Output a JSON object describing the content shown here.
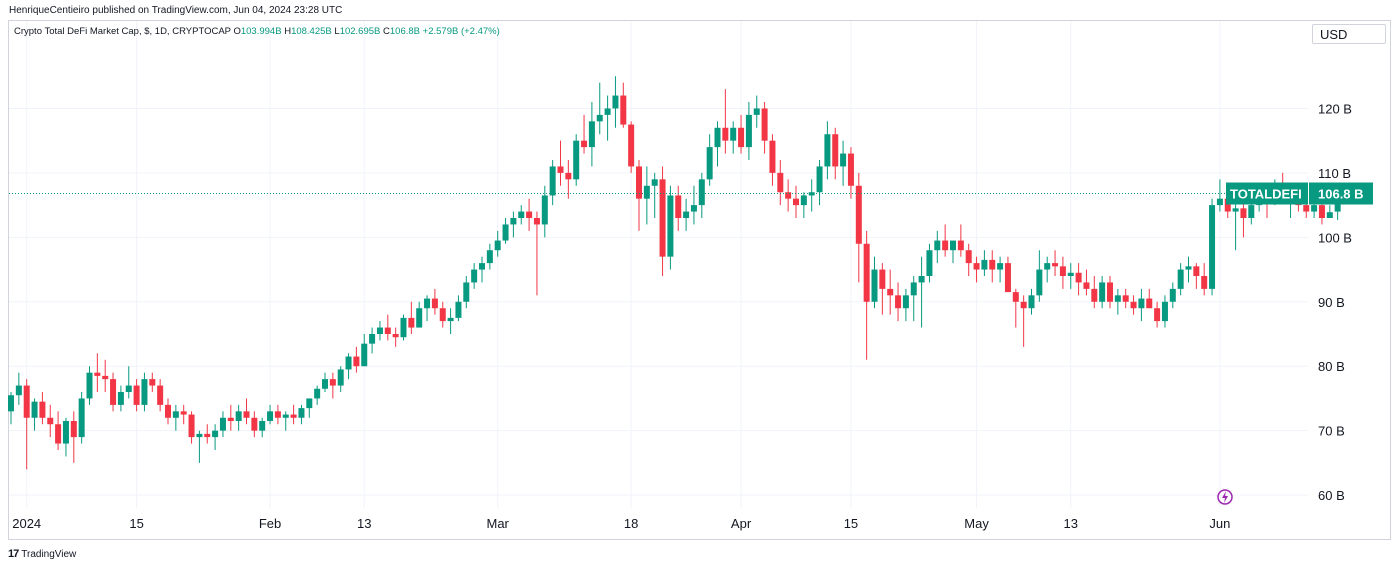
{
  "header": {
    "published_line": "HenriqueCentieiro published on TradingView.com, Jun 04, 2024 23:28 UTC"
  },
  "legend": {
    "symbol_line": "Crypto Total DeFi Market Cap, $, 1D, CRYPTOCAP",
    "open_label": "O",
    "open_value": "103.994B",
    "high_label": "H",
    "high_value": "108.425B",
    "low_label": "L",
    "low_value": "102.695B",
    "close_label": "C",
    "close_value": "106.8B",
    "change": "+2.579B (+2.47%)"
  },
  "currency_button": {
    "label": "USD"
  },
  "price_tag": {
    "symbol": "TOTALDEFI",
    "value": "106.8 B"
  },
  "footer": {
    "logo_mark": "17",
    "brand": "TradingView"
  },
  "colors": {
    "up": "#089981",
    "down": "#f23645",
    "grid": "#f0f3fa",
    "accent": "#9c27b0"
  },
  "icons": {
    "lightning": "lightning-icon",
    "logo": "tradingview-logo-icon"
  },
  "chart_data": {
    "type": "candlestick",
    "title": "",
    "xlabel": "",
    "ylabel": "",
    "ylim": [
      58,
      130
    ],
    "y_ticks": [
      60,
      70,
      80,
      90,
      100,
      110,
      120
    ],
    "y_tick_labels": [
      "60 B",
      "70 B",
      "80 B",
      "90 B",
      "100 B",
      "110 B",
      "120 B"
    ],
    "x_tick_labels": [
      "2024",
      "15",
      "Feb",
      "13",
      "Mar",
      "18",
      "Apr",
      "15",
      "May",
      "13",
      "Jun"
    ],
    "x_tick_dates": [
      "2024-01-01",
      "2024-01-15",
      "2024-02-01",
      "2024-02-13",
      "2024-03-01",
      "2024-03-18",
      "2024-04-01",
      "2024-04-15",
      "2024-05-01",
      "2024-05-13",
      "2024-06-01"
    ],
    "last_value": 106.8,
    "grid": true,
    "candle_start_date": "2023-12-30",
    "candles": [
      [
        73,
        76,
        71,
        75.5
      ],
      [
        75.5,
        79,
        74,
        77
      ],
      [
        77,
        78,
        64,
        72
      ],
      [
        72,
        75,
        70,
        74.5
      ],
      [
        74.5,
        76,
        71,
        72
      ],
      [
        72,
        74,
        69,
        71
      ],
      [
        71,
        73,
        67,
        68
      ],
      [
        68,
        72,
        66,
        71.5
      ],
      [
        71.5,
        73,
        65,
        69
      ],
      [
        69,
        76,
        68,
        75
      ],
      [
        75,
        80,
        74,
        79
      ],
      [
        79,
        82,
        76,
        78.5
      ],
      [
        78.5,
        81,
        76,
        78
      ],
      [
        78,
        79,
        73,
        74
      ],
      [
        74,
        77,
        73,
        76
      ],
      [
        76,
        80,
        75,
        77
      ],
      [
        77,
        78,
        73,
        74
      ],
      [
        74,
        79,
        73,
        78
      ],
      [
        78,
        79,
        76,
        77
      ],
      [
        77,
        78,
        73,
        74
      ],
      [
        74,
        75,
        71,
        72
      ],
      [
        72,
        74,
        70,
        73
      ],
      [
        73,
        74,
        71,
        72.5
      ],
      [
        72.5,
        73,
        68,
        69
      ],
      [
        69,
        70,
        65,
        69.5
      ],
      [
        69.5,
        71,
        68,
        69
      ],
      [
        69,
        71,
        67,
        70
      ],
      [
        70,
        73,
        69,
        72
      ],
      [
        72,
        74,
        70,
        71.5
      ],
      [
        71.5,
        74,
        70,
        73
      ],
      [
        73,
        75,
        71,
        72
      ],
      [
        72,
        73,
        69,
        70
      ],
      [
        70,
        72,
        69,
        71.5
      ],
      [
        71.5,
        74,
        71,
        73
      ],
      [
        73,
        74,
        71,
        72
      ],
      [
        72,
        73,
        70,
        72.5
      ],
      [
        72.5,
        74,
        71,
        72
      ],
      [
        72,
        74,
        71,
        73.5
      ],
      [
        73.5,
        75,
        72,
        75
      ],
      [
        75,
        77,
        74,
        76.5
      ],
      [
        76.5,
        79,
        76,
        78
      ],
      [
        78,
        79,
        75,
        77
      ],
      [
        77,
        80,
        76,
        79.5
      ],
      [
        79.5,
        82,
        78,
        81.5
      ],
      [
        81.5,
        83,
        79,
        80
      ],
      [
        80,
        85,
        80,
        83.5
      ],
      [
        83.5,
        86,
        82,
        85
      ],
      [
        85,
        87,
        84,
        86
      ],
      [
        86,
        88,
        84,
        85
      ],
      [
        85,
        86,
        83,
        84.5
      ],
      [
        84.5,
        88,
        84,
        87.5
      ],
      [
        87.5,
        90,
        85,
        86
      ],
      [
        86,
        90,
        86,
        89
      ],
      [
        89,
        91,
        87,
        90.5
      ],
      [
        90.5,
        92,
        88,
        89
      ],
      [
        89,
        90,
        86,
        87
      ],
      [
        87,
        89,
        85,
        87.5
      ],
      [
        87.5,
        91,
        87,
        90
      ],
      [
        90,
        94,
        89,
        93
      ],
      [
        93,
        96,
        92,
        95
      ],
      [
        95,
        97,
        93,
        96
      ],
      [
        96,
        99,
        95,
        98
      ],
      [
        98,
        101,
        97,
        99.5
      ],
      [
        99.5,
        103,
        99,
        102
      ],
      [
        102,
        104,
        100,
        103
      ],
      [
        103,
        105,
        102,
        104
      ],
      [
        104,
        106,
        101,
        103
      ],
      [
        103,
        104,
        91,
        102
      ],
      [
        102,
        108,
        100,
        106.5
      ],
      [
        106.5,
        112,
        105,
        111
      ],
      [
        111,
        115,
        108,
        110
      ],
      [
        110,
        112,
        106,
        109
      ],
      [
        109,
        116,
        108,
        115
      ],
      [
        115,
        119,
        113,
        114
      ],
      [
        114,
        121,
        111,
        118
      ],
      [
        118,
        124,
        116,
        119
      ],
      [
        119,
        122,
        115,
        120
      ],
      [
        120,
        125,
        117,
        122
      ],
      [
        122,
        124,
        117,
        117.5
      ],
      [
        117.5,
        118,
        110,
        111
      ],
      [
        111,
        112,
        101,
        106
      ],
      [
        106,
        111,
        102,
        108
      ],
      [
        108,
        110,
        103,
        109
      ],
      [
        109,
        111,
        94,
        97
      ],
      [
        97,
        108,
        95,
        106.5
      ],
      [
        106.5,
        108,
        101,
        103
      ],
      [
        103,
        106,
        101,
        104
      ],
      [
        104,
        108,
        102,
        105
      ],
      [
        105,
        110,
        103,
        109
      ],
      [
        109,
        116,
        108,
        114
      ],
      [
        114,
        118,
        111,
        117
      ],
      [
        117,
        123,
        113,
        115
      ],
      [
        115,
        118,
        113,
        117
      ],
      [
        117,
        119,
        113,
        114
      ],
      [
        114,
        121,
        112,
        119
      ],
      [
        119,
        122,
        117,
        120
      ],
      [
        120,
        121,
        113,
        115
      ],
      [
        115,
        116,
        108,
        110
      ],
      [
        110,
        112,
        105,
        107
      ],
      [
        107,
        109,
        104,
        106
      ],
      [
        106,
        108,
        103,
        105
      ],
      [
        105,
        107,
        103,
        106.5
      ],
      [
        106.5,
        109,
        104,
        107
      ],
      [
        107,
        112,
        105,
        111
      ],
      [
        111,
        118,
        109,
        116
      ],
      [
        116,
        117,
        109,
        111
      ],
      [
        111,
        115,
        108,
        113
      ],
      [
        113,
        114,
        106,
        108
      ],
      [
        108,
        110,
        93,
        99
      ],
      [
        99,
        101,
        81,
        90
      ],
      [
        90,
        97,
        89,
        95
      ],
      [
        95,
        96,
        88,
        92
      ],
      [
        92,
        95,
        88,
        91
      ],
      [
        91,
        93,
        87,
        89
      ],
      [
        89,
        92,
        87,
        91
      ],
      [
        91,
        94,
        87,
        93
      ],
      [
        93,
        97,
        86,
        94
      ],
      [
        94,
        99,
        93,
        98
      ],
      [
        98,
        101,
        96,
        99.5
      ],
      [
        99.5,
        102,
        97,
        98
      ],
      [
        98,
        99,
        96,
        99.5
      ],
      [
        99.5,
        102,
        97,
        98
      ],
      [
        98,
        99,
        94,
        96
      ],
      [
        96,
        97,
        93,
        95
      ],
      [
        95,
        98,
        94,
        96.5
      ],
      [
        96.5,
        98,
        93,
        95
      ],
      [
        95,
        97,
        93,
        96
      ],
      [
        96,
        97,
        92,
        91.5
      ],
      [
        91.5,
        92,
        86,
        90
      ],
      [
        90,
        91,
        83,
        89
      ],
      [
        89,
        92,
        88,
        91
      ],
      [
        91,
        98,
        90,
        95
      ],
      [
        95,
        97,
        93,
        96
      ],
      [
        96,
        98,
        94,
        95.5
      ],
      [
        95.5,
        97,
        92,
        94
      ],
      [
        94,
        96,
        92,
        94.5
      ],
      [
        94.5,
        96,
        91,
        93
      ],
      [
        93,
        95,
        91,
        92
      ],
      [
        92,
        94,
        89,
        90
      ],
      [
        90,
        94,
        89,
        93
      ],
      [
        93,
        94,
        89,
        90
      ],
      [
        90,
        92,
        88,
        91
      ],
      [
        91,
        92,
        89,
        90
      ],
      [
        90,
        91,
        88,
        89
      ],
      [
        89,
        92,
        87,
        90.5
      ],
      [
        90.5,
        92,
        89,
        89
      ],
      [
        89,
        90,
        86,
        87
      ],
      [
        87,
        91,
        86,
        90
      ],
      [
        90,
        93,
        89,
        92
      ],
      [
        92,
        96,
        91,
        95
      ],
      [
        95,
        97,
        93,
        95.5
      ],
      [
        95.5,
        96,
        92,
        94
      ],
      [
        94,
        96,
        91,
        92
      ],
      [
        92,
        106,
        91,
        105
      ],
      [
        105,
        109,
        104,
        106
      ],
      [
        106,
        108,
        103,
        104
      ],
      [
        104,
        107,
        98,
        104.5
      ],
      [
        104.5,
        107,
        100,
        103
      ],
      [
        103,
        106,
        102,
        105
      ],
      [
        105,
        108,
        104,
        106
      ],
      [
        106,
        107,
        103,
        105.5
      ],
      [
        105.5,
        109,
        105,
        108
      ],
      [
        108,
        110,
        106,
        106
      ],
      [
        106,
        107,
        103,
        106.5
      ],
      [
        106.5,
        108,
        104,
        105
      ],
      [
        105,
        107,
        103,
        104
      ],
      [
        104,
        106,
        103,
        105
      ],
      [
        105,
        107,
        102,
        103
      ],
      [
        103,
        105,
        103,
        103.9
      ],
      [
        103.994,
        108.425,
        102.695,
        106.8
      ]
    ]
  }
}
